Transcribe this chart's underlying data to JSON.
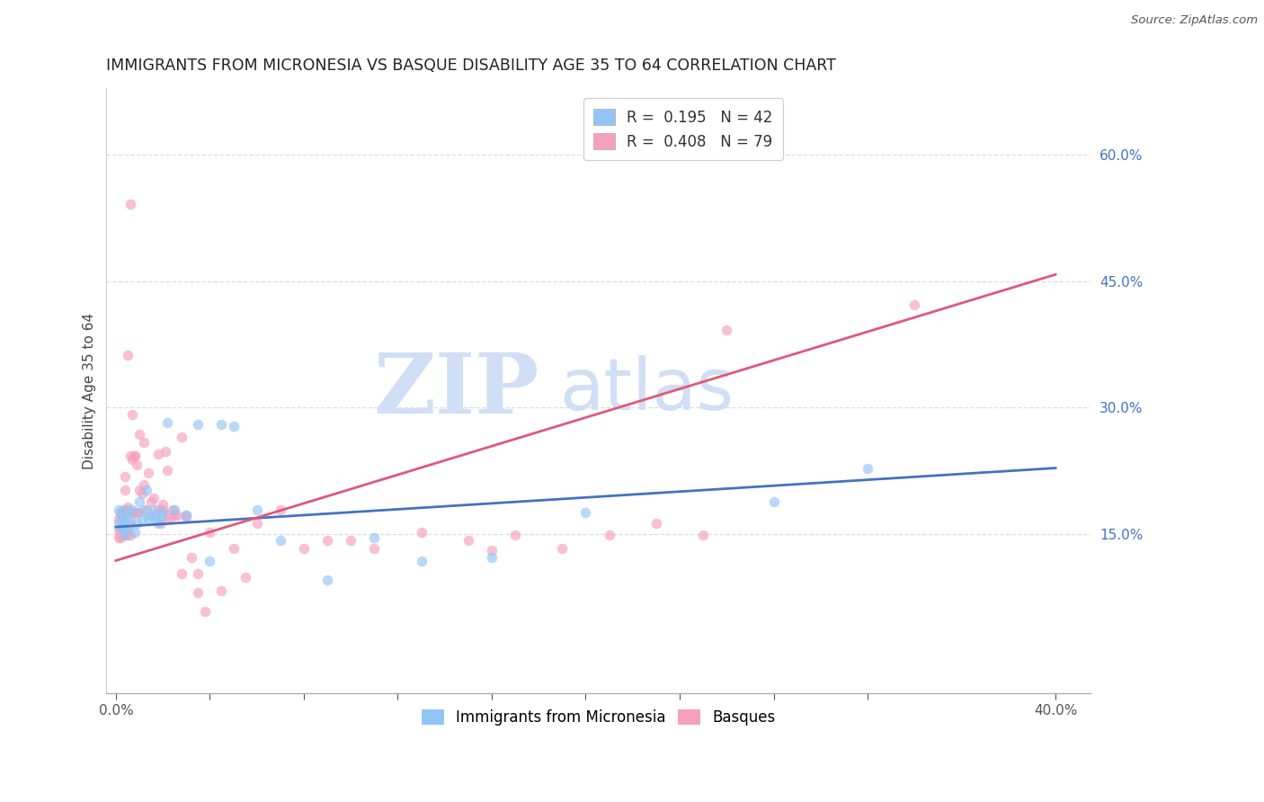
{
  "title": "IMMIGRANTS FROM MICRONESIA VS BASQUE DISABILITY AGE 35 TO 64 CORRELATION CHART",
  "source": "Source: ZipAtlas.com",
  "ylabel": "Disability Age 35 to 64",
  "x_ticklabels_show": [
    "0.0%",
    "",
    "",
    "",
    "",
    "",
    "",
    "",
    "",
    "40.0%"
  ],
  "x_ticks": [
    0.0,
    0.04,
    0.08,
    0.12,
    0.16,
    0.2,
    0.24,
    0.28,
    0.32,
    0.4
  ],
  "y_ticklabels_right": [
    "15.0%",
    "30.0%",
    "45.0%",
    "60.0%"
  ],
  "y_ticks_right": [
    0.15,
    0.3,
    0.45,
    0.6
  ],
  "xlim": [
    -0.004,
    0.415
  ],
  "ylim": [
    -0.04,
    0.68
  ],
  "legend_r1": "0.195",
  "legend_n1": "42",
  "legend_r2": "0.408",
  "legend_n2": "79",
  "watermark_color": "#d0dff5",
  "title_fontsize": 12.5,
  "axis_label_fontsize": 11,
  "tick_fontsize": 11,
  "legend_fontsize": 12,
  "blue_scatter_color": "#92c5f5",
  "pink_scatter_color": "#f5a0bc",
  "blue_line_color": "#4472c4",
  "pink_line_color": "#e05878",
  "scatter_alpha": 0.65,
  "scatter_size": 70,
  "blue_points_x": [
    0.001,
    0.001,
    0.002,
    0.002,
    0.003,
    0.003,
    0.003,
    0.004,
    0.004,
    0.005,
    0.005,
    0.006,
    0.007,
    0.008,
    0.009,
    0.01,
    0.011,
    0.012,
    0.013,
    0.014,
    0.015,
    0.016,
    0.017,
    0.018,
    0.019,
    0.02,
    0.022,
    0.025,
    0.03,
    0.035,
    0.04,
    0.045,
    0.05,
    0.06,
    0.07,
    0.09,
    0.11,
    0.13,
    0.16,
    0.2,
    0.28,
    0.32
  ],
  "blue_points_y": [
    0.178,
    0.162,
    0.175,
    0.158,
    0.168,
    0.162,
    0.155,
    0.17,
    0.148,
    0.178,
    0.158,
    0.168,
    0.178,
    0.152,
    0.162,
    0.188,
    0.168,
    0.178,
    0.202,
    0.168,
    0.172,
    0.178,
    0.168,
    0.162,
    0.17,
    0.175,
    0.282,
    0.178,
    0.172,
    0.28,
    0.118,
    0.28,
    0.278,
    0.178,
    0.142,
    0.095,
    0.145,
    0.118,
    0.122,
    0.175,
    0.188,
    0.228
  ],
  "pink_points_x": [
    0.001,
    0.001,
    0.001,
    0.002,
    0.002,
    0.002,
    0.003,
    0.003,
    0.003,
    0.004,
    0.004,
    0.004,
    0.005,
    0.005,
    0.005,
    0.006,
    0.006,
    0.006,
    0.007,
    0.007,
    0.008,
    0.008,
    0.009,
    0.009,
    0.01,
    0.01,
    0.011,
    0.012,
    0.013,
    0.014,
    0.015,
    0.016,
    0.017,
    0.018,
    0.019,
    0.02,
    0.021,
    0.022,
    0.023,
    0.024,
    0.025,
    0.026,
    0.028,
    0.03,
    0.032,
    0.035,
    0.038,
    0.04,
    0.045,
    0.05,
    0.055,
    0.06,
    0.07,
    0.08,
    0.09,
    0.1,
    0.11,
    0.13,
    0.15,
    0.16,
    0.17,
    0.19,
    0.21,
    0.23,
    0.25,
    0.26,
    0.018,
    0.022,
    0.03,
    0.035,
    0.005,
    0.006,
    0.007,
    0.008,
    0.01,
    0.012,
    0.02,
    0.028,
    0.34
  ],
  "pink_points_y": [
    0.155,
    0.168,
    0.145,
    0.172,
    0.152,
    0.145,
    0.178,
    0.162,
    0.148,
    0.202,
    0.218,
    0.175,
    0.182,
    0.155,
    0.148,
    0.242,
    0.162,
    0.148,
    0.238,
    0.175,
    0.242,
    0.175,
    0.232,
    0.175,
    0.202,
    0.175,
    0.198,
    0.208,
    0.178,
    0.222,
    0.188,
    0.192,
    0.172,
    0.178,
    0.162,
    0.178,
    0.248,
    0.172,
    0.168,
    0.178,
    0.172,
    0.172,
    0.102,
    0.172,
    0.122,
    0.102,
    0.058,
    0.152,
    0.082,
    0.132,
    0.098,
    0.162,
    0.178,
    0.132,
    0.142,
    0.142,
    0.132,
    0.152,
    0.142,
    0.13,
    0.148,
    0.132,
    0.148,
    0.162,
    0.148,
    0.392,
    0.245,
    0.225,
    0.17,
    0.08,
    0.362,
    0.542,
    0.292,
    0.242,
    0.268,
    0.258,
    0.185,
    0.265,
    0.422
  ],
  "blue_line_x": [
    0.0,
    0.4
  ],
  "blue_line_y": [
    0.158,
    0.228
  ],
  "pink_line_x": [
    0.0,
    0.4
  ],
  "pink_line_y": [
    0.118,
    0.458
  ],
  "grid_color": "#dddddd",
  "background_color": "#ffffff",
  "right_axis_color": "#4472c4",
  "title_color": "#222222",
  "ylabel_color": "#444444",
  "xtick_color": "#555555"
}
